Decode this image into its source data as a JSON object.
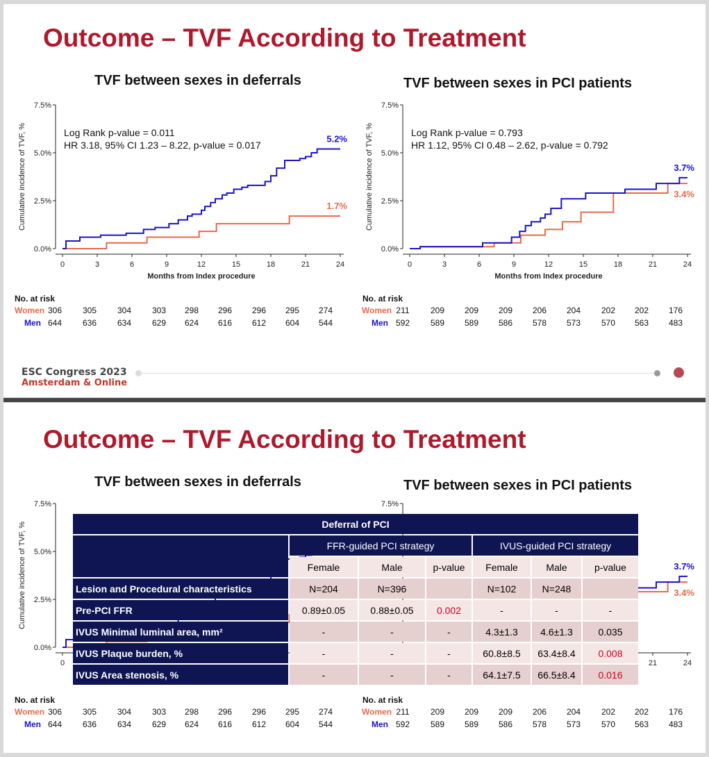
{
  "slide_title": "Outcome – TVF According to Treatment",
  "colors": {
    "women": "#e8694a",
    "men": "#1a12c8",
    "title": "#b0182b",
    "table_header": "#0e1552"
  },
  "chart_data": [
    {
      "type": "line",
      "title": "TVF between sexes in deferrals",
      "xlabel": "Months from Index procedure",
      "ylabel": "Cumulative incidence of TVF, %",
      "xticks": [
        "0",
        "3",
        "6",
        "9",
        "12",
        "15",
        "18",
        "21",
        "24"
      ],
      "yticks": [
        "0.0%",
        "2.5%",
        "5.0%",
        "7.5%"
      ],
      "xlim": [
        0,
        24
      ],
      "ylim": [
        0,
        7.5
      ],
      "annotations": [
        "Log Rank p-value = 0.011",
        "HR 3.18, 95% CI 1.23 – 8.22, p-value = 0.017"
      ],
      "series": [
        {
          "name": "Men",
          "end_label": "5.2%",
          "x": [
            0,
            0.3,
            1.5,
            3.3,
            5.5,
            7,
            8,
            9.2,
            10,
            10.8,
            11.2,
            12,
            12.3,
            12.8,
            13.2,
            13.8,
            14.2,
            14.8,
            15.5,
            16,
            17.5,
            18,
            18.5,
            19.2,
            20.5,
            21,
            21.5,
            22,
            24
          ],
          "y": [
            0,
            0.4,
            0.6,
            0.7,
            0.8,
            1.0,
            1.1,
            1.3,
            1.5,
            1.7,
            1.8,
            2.0,
            2.2,
            2.4,
            2.6,
            2.8,
            2.9,
            3.1,
            3.2,
            3.3,
            3.5,
            3.8,
            4.2,
            4.6,
            4.7,
            4.8,
            5.0,
            5.2,
            5.2
          ]
        },
        {
          "name": "Women",
          "end_label": "1.7%",
          "x": [
            0,
            3.8,
            7.3,
            11.8,
            13.3,
            19.6,
            24
          ],
          "y": [
            0,
            0.3,
            0.6,
            0.9,
            1.3,
            1.7,
            1.7
          ]
        }
      ]
    },
    {
      "type": "line",
      "title": "TVF between sexes in PCI patients",
      "xlabel": "Months from Index procedure",
      "ylabel": "Cumulative incidence of TVF, %",
      "xticks": [
        "0",
        "3",
        "6",
        "9",
        "12",
        "15",
        "18",
        "21",
        "24"
      ],
      "yticks": [
        "0.0%",
        "2.5%",
        "5.0%",
        "7.5%"
      ],
      "xlim": [
        0,
        24
      ],
      "ylim": [
        0,
        7.5
      ],
      "annotations": [
        "Log Rank p-value = 0.793",
        "HR 1.12, 95% CI 0.48 – 2.62, p-value = 0.792"
      ],
      "series": [
        {
          "name": "Men",
          "end_label": "3.7%",
          "x": [
            0,
            0.9,
            6.3,
            8.8,
            9.5,
            10,
            10.5,
            11.3,
            11.7,
            12.2,
            13.1,
            15.2,
            18.6,
            21.3,
            23.3,
            24
          ],
          "y": [
            0,
            0.1,
            0.3,
            0.6,
            0.9,
            1.2,
            1.4,
            1.6,
            1.8,
            2.1,
            2.6,
            2.9,
            3.1,
            3.4,
            3.7,
            3.7
          ]
        },
        {
          "name": "Women",
          "end_label": "3.4%",
          "x": [
            0,
            0.9,
            7.3,
            9.6,
            11.7,
            13.2,
            14.8,
            17.6,
            22.3,
            24
          ],
          "y": [
            0,
            0.1,
            0.3,
            0.7,
            1.0,
            1.4,
            1.9,
            2.9,
            3.4,
            3.4
          ]
        }
      ]
    }
  ],
  "risk_table": {
    "label": "No. at risk",
    "women_label": "Women",
    "men_label": "Men",
    "deferrals": {
      "women": [
        "306",
        "305",
        "304",
        "303",
        "298",
        "296",
        "296",
        "295",
        "274"
      ],
      "men": [
        "644",
        "636",
        "634",
        "629",
        "624",
        "616",
        "612",
        "604",
        "544"
      ]
    },
    "pci": {
      "women": [
        "211",
        "209",
        "209",
        "209",
        "206",
        "204",
        "202",
        "202",
        "176"
      ],
      "men": [
        "592",
        "589",
        "589",
        "586",
        "578",
        "573",
        "570",
        "563",
        "483"
      ]
    }
  },
  "footer": {
    "congress": "ESC Congress 2023",
    "location": "Amsterdam & Online"
  },
  "slide2_visible": {
    "right_y_tick": "7.5%",
    "men_end": "3.7%",
    "women_end": "3.4%",
    "x21": "21",
    "x24": "24",
    "x0": "0"
  },
  "table": {
    "title": "Deferral of PCI",
    "group1": "FFR-guided PCI strategy",
    "group2": "IVUS-guided PCI strategy",
    "subheaders": [
      "Female",
      "Male",
      "p-value",
      "Female",
      "Male",
      "p-value"
    ],
    "rows": [
      {
        "label": "Lesion and Procedural characteristics",
        "cells": [
          "N=204",
          "N=396",
          "",
          "N=102",
          "N=248",
          ""
        ]
      },
      {
        "label": "Pre-PCI FFR",
        "cells": [
          "0.89±0.05",
          "0.88±0.05",
          "0.002",
          "-",
          "-",
          "-"
        ]
      },
      {
        "label": "IVUS Minimal luminal area, mm²",
        "cells": [
          "-",
          "-",
          "-",
          "4.3±1.3",
          "4.6±1.3",
          "0.035"
        ]
      },
      {
        "label": "IVUS Plaque burden, %",
        "cells": [
          "-",
          "-",
          "-",
          "60.8±8.5",
          "63.4±8.4",
          "0.008"
        ]
      },
      {
        "label": "IVUS Area stenosis, %",
        "cells": [
          "-",
          "-",
          "-",
          "64.1±7.5",
          "66.5±8.4",
          "0.016"
        ]
      }
    ]
  }
}
